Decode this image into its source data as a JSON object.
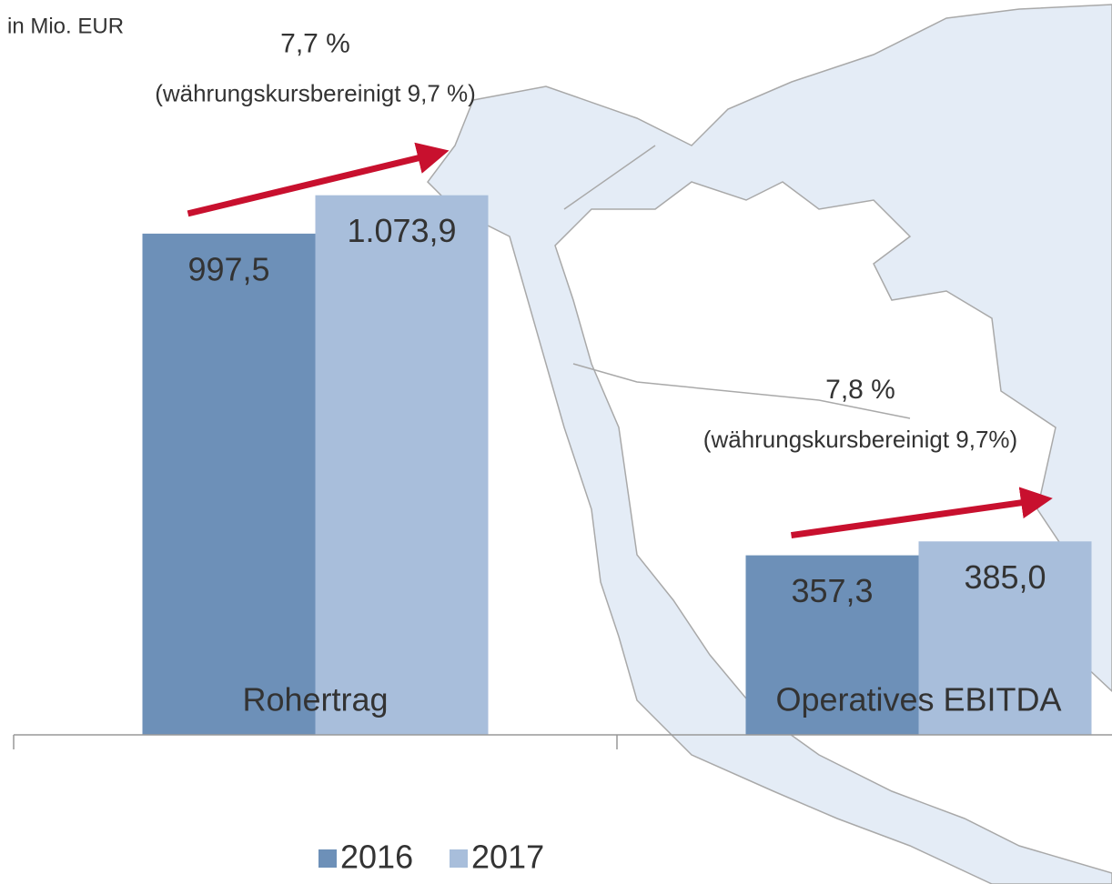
{
  "chart_data": {
    "type": "bar",
    "unit_label": "in Mio. EUR",
    "categories": [
      "Rohertrag",
      "Operatives EBITDA"
    ],
    "series": [
      {
        "name": "2016",
        "color": "#6d90b8",
        "values": [
          997.5,
          357.3
        ],
        "value_labels": [
          "997,5",
          "357,3"
        ]
      },
      {
        "name": "2017",
        "color": "#a8bedb",
        "values": [
          1073.9,
          385.0
        ],
        "value_labels": [
          "1.073,9",
          "385,0"
        ]
      }
    ],
    "ylim": [
      0,
      1200
    ],
    "annotations": [
      {
        "text": "7,7 %",
        "subtext": "(währungskursbereinigt  9,7 %)"
      },
      {
        "text": "7,8 %",
        "subtext": "(währungskursbereinigt  9,7%)"
      }
    ],
    "arrow_color": "#c8102e"
  }
}
